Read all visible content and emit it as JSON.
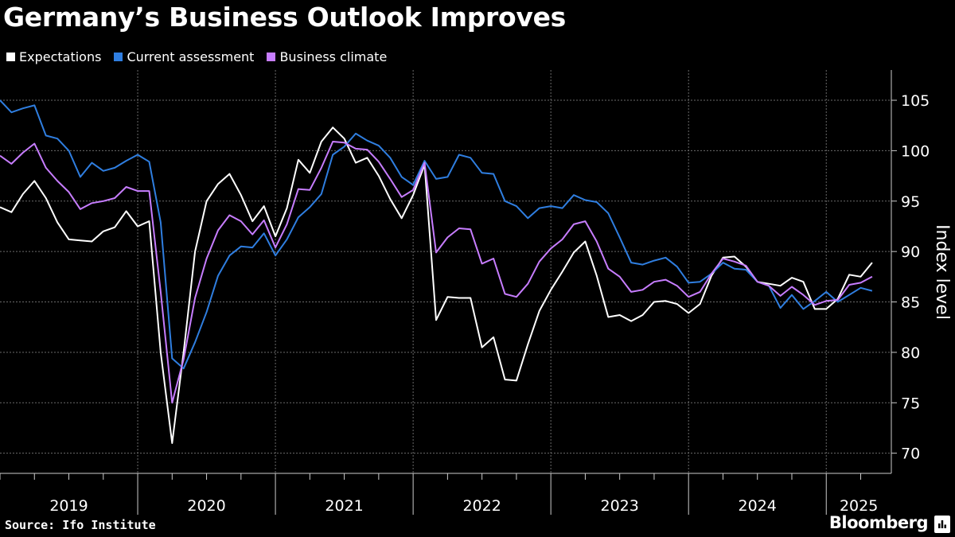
{
  "chart_data": {
    "type": "line",
    "title": "Germany’s Business Outlook Improves",
    "ylabel": "Index level",
    "ylim": [
      68,
      108
    ],
    "yticks": [
      70,
      75,
      80,
      85,
      90,
      95,
      100,
      105
    ],
    "x_start": "2019-01",
    "x_end": "2025-05",
    "year_labels": [
      "2019",
      "2020",
      "2021",
      "2022",
      "2023",
      "2024",
      "2025"
    ],
    "grid": true,
    "legend_position": "top-left",
    "series": [
      {
        "name": "Expectations",
        "color": "#ffffff",
        "values": [
          94.4,
          93.9,
          95.7,
          97.0,
          95.3,
          92.9,
          91.2,
          91.1,
          91.0,
          92.0,
          92.4,
          94.0,
          92.5,
          93.0,
          80.0,
          71.0,
          80.0,
          90.0,
          95.0,
          96.7,
          97.7,
          95.6,
          93.0,
          94.5,
          91.5,
          94.3,
          99.1,
          97.8,
          100.9,
          102.3,
          101.2,
          98.8,
          99.3,
          97.5,
          95.2,
          93.3,
          95.6,
          98.6,
          83.2,
          85.5,
          85.4,
          85.4,
          80.5,
          81.5,
          77.3,
          77.2,
          80.8,
          84.1,
          86.2,
          88.0,
          89.9,
          91.0,
          87.6,
          83.5,
          83.7,
          83.1,
          83.7,
          85.0,
          85.1,
          84.8,
          83.9,
          84.8,
          87.6,
          89.4,
          89.5,
          88.5,
          87.0,
          86.8,
          86.6,
          87.4,
          87.0,
          84.3,
          84.3,
          85.3,
          87.7,
          87.5,
          88.9
        ]
      },
      {
        "name": "Current assessment",
        "color": "#2f7ee0",
        "values": [
          105.0,
          103.8,
          104.2,
          104.5,
          101.5,
          101.2,
          100.0,
          97.4,
          98.8,
          98.0,
          98.3,
          99.0,
          99.6,
          98.9,
          92.9,
          79.4,
          78.4,
          81.0,
          84.0,
          87.6,
          89.6,
          90.5,
          90.4,
          91.8,
          89.6,
          91.2,
          93.4,
          94.4,
          95.7,
          99.6,
          100.4,
          101.7,
          101.0,
          100.5,
          99.3,
          97.4,
          96.6,
          99.0,
          97.2,
          97.4,
          99.6,
          99.3,
          97.8,
          97.7,
          95.0,
          94.5,
          93.3,
          94.3,
          94.5,
          94.3,
          95.6,
          95.1,
          94.9,
          93.8,
          91.4,
          88.9,
          88.7,
          89.1,
          89.4,
          88.5,
          86.9,
          87.0,
          87.8,
          88.9,
          88.3,
          88.2,
          87.0,
          86.6,
          84.4,
          85.7,
          84.3,
          85.1,
          86.0,
          85.0,
          85.7,
          86.4,
          86.1
        ]
      },
      {
        "name": "Business climate",
        "color": "#c77dff",
        "values": [
          99.5,
          98.7,
          99.8,
          100.7,
          98.3,
          97.0,
          95.9,
          94.2,
          94.8,
          95.0,
          95.3,
          96.4,
          96.0,
          96.0,
          86.0,
          75.0,
          79.3,
          85.4,
          89.3,
          92.1,
          93.6,
          93.0,
          91.7,
          93.1,
          90.4,
          92.7,
          96.2,
          96.1,
          98.3,
          100.9,
          100.8,
          100.2,
          100.1,
          98.9,
          97.2,
          95.4,
          96.1,
          98.8,
          89.9,
          91.4,
          92.3,
          92.2,
          88.8,
          89.3,
          85.8,
          85.5,
          86.8,
          89.0,
          90.3,
          91.2,
          92.7,
          93.0,
          91.0,
          88.3,
          87.5,
          86.0,
          86.2,
          87.0,
          87.2,
          86.6,
          85.5,
          86.0,
          87.8,
          89.3,
          89.0,
          88.6,
          87.0,
          86.6,
          85.6,
          86.5,
          85.7,
          84.7,
          85.1,
          85.2,
          86.7,
          86.9,
          87.5
        ]
      }
    ]
  },
  "footer": {
    "source": "Source: Ifo Institute",
    "brand": "Bloomberg"
  }
}
